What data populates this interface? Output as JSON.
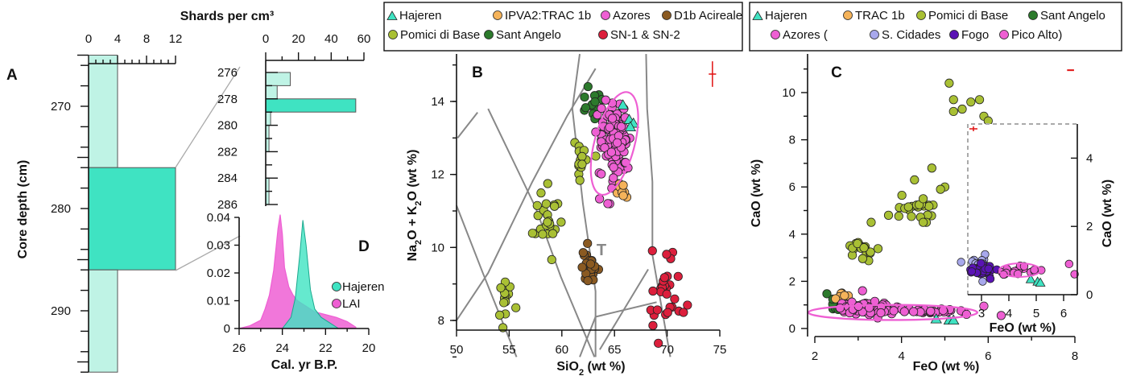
{
  "colors": {
    "Hajeren": "#3fe3c2",
    "IPVA2:TRAC 1b": "#f5b35a",
    "TRAC 1b": "#f5b35a",
    "Azores": "#ee5fd3",
    "D1b Acireale": "#8a5a22",
    "Pomici di Base": "#a9c034",
    "Sant Angelo": "#2c7a2c",
    "SN-1 & SN-2": "#dc1f3c",
    "S. Cidades": "#a8a8ec",
    "Fogo": "#5a13b4",
    "Pico Alto": "#ee5fd3",
    "error": "#e01010",
    "hist": "#bff3e5",
    "hist_hi": "#3fe3c2"
  },
  "panels": {
    "A": {
      "label": "A",
      "ylabel": "Core depth (cm)",
      "xlabel": "Shards per cm³"
    },
    "B": {
      "label": "B",
      "xlabel": "SiO₂ (wt %)",
      "ylabel": "Na₂O + K₂O (wt %)",
      "region_label": "T"
    },
    "C": {
      "label": "C",
      "xlabel": "FeO (wt %)",
      "ylabel": "CaO (wt %)",
      "inset_xlabel": "FeO (wt %)",
      "inset_ylabel": "CaO (wt %)"
    },
    "D": {
      "label": "D",
      "xlabel": "Cal. yr B.P."
    }
  },
  "legend_B": [
    {
      "name": "Hajeren",
      "shape": "triangle"
    },
    {
      "name": "IPVA2:TRAC 1b",
      "shape": "circle"
    },
    {
      "name": "Azores",
      "shape": "circle"
    },
    {
      "name": "D1b Acireale",
      "shape": "circle"
    },
    {
      "name": "Pomici di Base",
      "shape": "circle"
    },
    {
      "name": "Sant Angelo",
      "shape": "circle"
    },
    {
      "name": "SN-1 & SN-2",
      "shape": "circle"
    }
  ],
  "legend_C": [
    {
      "name": "Hajeren",
      "shape": "triangle",
      "text": "Hajeren"
    },
    {
      "name": "TRAC 1b",
      "shape": "circle",
      "text": "TRAC 1b"
    },
    {
      "name": "Pomici di Base",
      "shape": "circle",
      "text": "Pomici di Base"
    },
    {
      "name": "Sant Angelo",
      "shape": "circle",
      "text": "Sant Angelo"
    },
    {
      "name": "Azores",
      "shape": "circle",
      "text": "Azores ("
    },
    {
      "name": "S. Cidades",
      "shape": "circle",
      "text": "S. Cidades"
    },
    {
      "name": "Fogo",
      "shape": "circle",
      "text": "Fogo"
    },
    {
      "name": "Pico Alto",
      "shape": "circle",
      "text": "Pico Alto)"
    }
  ],
  "chart_data": [
    {
      "id": "A",
      "type": "bar",
      "orientation": "horizontal",
      "xlabel": "Shards per cm³",
      "ylabel": "Core depth (cm)",
      "xlim": [
        0,
        12
      ],
      "ylim": [
        296,
        265
      ],
      "xticks": [
        0,
        4,
        8,
        12
      ],
      "yticks": [
        270,
        280,
        290
      ],
      "bins": [
        {
          "from": 265,
          "to": 276,
          "value": 4
        },
        {
          "from": 276,
          "to": 286,
          "value": 12
        },
        {
          "from": 286,
          "to": 296,
          "value": 4
        }
      ]
    },
    {
      "id": "A-detail",
      "type": "bar",
      "orientation": "horizontal",
      "xlabel": "Shards per cm³",
      "ylabel": "",
      "xlim": [
        0,
        60
      ],
      "ylim": [
        286,
        275.7
      ],
      "xticks": [
        0,
        20,
        40,
        60
      ],
      "yticks": [
        276,
        278,
        280,
        282,
        284,
        286
      ],
      "bins": [
        {
          "from": 276,
          "to": 277,
          "value": 15
        },
        {
          "from": 277,
          "to": 278,
          "value": 7
        },
        {
          "from": 278,
          "to": 279,
          "value": 55
        },
        {
          "from": 279,
          "to": 280,
          "value": 3
        },
        {
          "from": 280,
          "to": 281,
          "value": 2
        },
        {
          "from": 281,
          "to": 282,
          "value": 2
        },
        {
          "from": 284,
          "to": 285,
          "value": 2
        },
        {
          "from": 285,
          "to": 286,
          "value": 2
        }
      ]
    },
    {
      "id": "D",
      "type": "area",
      "xlabel": "Cal. yr B.P.",
      "xlim": [
        26,
        20
      ],
      "ylim": [
        0,
        0.04
      ],
      "xticks": [
        26,
        24,
        22,
        20
      ],
      "yticks": [
        0,
        0.01,
        0.02,
        0.03,
        0.04
      ],
      "series": [
        {
          "name": "LAI",
          "x": [
            26,
            25.5,
            25,
            24.8,
            24.6,
            24.4,
            24.2,
            24.1,
            24.0,
            23.9,
            23.7,
            23.5,
            23.3,
            23.1,
            22.9,
            22.7,
            22.5,
            22.0,
            21.5,
            21.0,
            20.6
          ],
          "y": [
            0,
            0.001,
            0.003,
            0.007,
            0.012,
            0.021,
            0.036,
            0.041,
            0.034,
            0.022,
            0.015,
            0.012,
            0.01,
            0.009,
            0.008,
            0.007,
            0.006,
            0.005,
            0.004,
            0.0025,
            0.0005
          ]
        },
        {
          "name": "Hajeren",
          "x": [
            24.0,
            23.6,
            23.4,
            23.2,
            23.05,
            22.9,
            22.7,
            22.5,
            22.2,
            21.8,
            21.4
          ],
          "y": [
            0,
            0.004,
            0.011,
            0.026,
            0.039,
            0.03,
            0.014,
            0.007,
            0.004,
            0.002,
            0
          ]
        }
      ]
    },
    {
      "id": "B",
      "type": "scatter",
      "xlabel": "SiO₂ (wt %)",
      "ylabel": "Na₂O + K₂O (wt %)",
      "xlim": [
        50,
        75
      ],
      "ylim": [
        7,
        15
      ],
      "xticks": [
        50,
        55,
        60,
        65,
        70,
        75
      ],
      "yticks": [
        8,
        10,
        12,
        14
      ],
      "error_bar": {
        "x": 74.3,
        "y": 14.75,
        "dx": 0.35,
        "dy": 0.35
      },
      "ellipse": {
        "series": "Azores",
        "cx": 65,
        "cy": 12.85,
        "rx": 1.9,
        "ry": 1.45,
        "angle_deg": 15
      },
      "series": [
        {
          "name": "Pomici di Base",
          "clusters": [
            {
              "x": 54.5,
              "y": 8.6,
              "sx": 0.4,
              "sy": 0.4,
              "n": 14
            },
            {
              "x": 58.8,
              "y": 10.8,
              "sx": 0.6,
              "sy": 0.45,
              "n": 26
            },
            {
              "x": 61.8,
              "y": 12.4,
              "sx": 0.6,
              "sy": 0.3,
              "n": 16
            }
          ]
        },
        {
          "name": "Sant Angelo",
          "clusters": [
            {
              "x": 62.8,
              "y": 13.9,
              "sx": 0.4,
              "sy": 0.3,
              "n": 12
            }
          ]
        },
        {
          "name": "D1b Acireale",
          "clusters": [
            {
              "x": 62.6,
              "y": 9.55,
              "sx": 0.45,
              "sy": 0.25,
              "n": 26
            }
          ]
        },
        {
          "name": "SN-1 & SN-2",
          "clusters": [
            {
              "x": 70.0,
              "y": 8.9,
              "sx": 0.7,
              "sy": 0.55,
              "n": 32
            }
          ]
        },
        {
          "name": "Azores",
          "clusters": [
            {
              "x": 65.0,
              "y": 12.9,
              "sx": 0.75,
              "sy": 0.55,
              "n": 120
            }
          ]
        },
        {
          "name": "IPVA2:TRAC 1b",
          "clusters": [
            {
              "x": 65.6,
              "y": 11.6,
              "sx": 0.3,
              "sy": 0.15,
              "n": 8
            }
          ]
        },
        {
          "name": "Hajeren",
          "points": [
            [
              65.8,
              13.9
            ],
            [
              66.4,
              13.5
            ],
            [
              66.8,
              13.4
            ],
            [
              66.5,
              13.3
            ]
          ]
        }
      ]
    },
    {
      "id": "C",
      "type": "scatter",
      "xlabel": "FeO (wt %)",
      "ylabel": "CaO (wt %)",
      "xlim": [
        2,
        8
      ],
      "ylim": [
        0,
        11
      ],
      "xticks": [
        2,
        4,
        6,
        8
      ],
      "yticks": [
        0,
        2,
        4,
        6,
        8,
        10
      ],
      "error_bar": {
        "x": 7.9,
        "y": 10.95,
        "dx": 0.08,
        "dy": 0.02
      },
      "ellipse": {
        "series": "Azores",
        "cx": 3.8,
        "cy": 0.68,
        "rx": 1.95,
        "ry": 0.32,
        "angle_deg": 0
      },
      "series": [
        {
          "name": "Pomici di Base",
          "clusters": [
            {
              "x": 3.05,
              "y": 3.3,
              "sx": 0.15,
              "sy": 0.2,
              "n": 20
            },
            {
              "x": 4.3,
              "y": 5.0,
              "sx": 0.25,
              "sy": 0.3,
              "n": 22
            }
          ],
          "points": [
            [
              5.1,
              10.4
            ],
            [
              5.2,
              9.7
            ],
            [
              5.4,
              9.3
            ],
            [
              5.6,
              9.6
            ],
            [
              5.8,
              9.7
            ],
            [
              5.2,
              9.2
            ],
            [
              5.9,
              9.0
            ],
            [
              6.0,
              8.8
            ],
            [
              4.3,
              6.3
            ],
            [
              4.7,
              6.8
            ],
            [
              5.0,
              6.0
            ],
            [
              3.7,
              4.8
            ],
            [
              3.3,
              4.5
            ],
            [
              4.5,
              4.5
            ],
            [
              4.9,
              5.9
            ],
            [
              4.5,
              5.5
            ]
          ]
        },
        {
          "name": "Sant Angelo",
          "clusters": [
            {
              "x": 2.45,
              "y": 1.05,
              "sx": 0.15,
              "sy": 0.18,
              "n": 14
            }
          ]
        },
        {
          "name": "TRAC 1b",
          "clusters": [
            {
              "x": 2.6,
              "y": 1.35,
              "sx": 0.08,
              "sy": 0.1,
              "n": 7
            }
          ]
        },
        {
          "name": "Azores",
          "clusters": [
            {
              "x": 3.2,
              "y": 0.85,
              "sx": 0.35,
              "sy": 0.12,
              "n": 80
            },
            {
              "x": 4.6,
              "y": 0.75,
              "sx": 0.35,
              "sy": 0.05,
              "n": 30
            }
          ],
          "points": [
            [
              5.9,
              0.95
            ],
            [
              6.3,
              0.55
            ],
            [
              5.5,
              0.6
            ],
            [
              3.1,
              1.6
            ]
          ]
        },
        {
          "name": "Hajeren",
          "points": [
            [
              4.8,
              0.4
            ],
            [
              5.1,
              0.35
            ],
            [
              5.2,
              0.35
            ]
          ]
        }
      ],
      "inset": {
        "xlabel": "FeO (wt %)",
        "ylabel": "CaO (wt %)",
        "xlim": [
          2.5,
          6.5
        ],
        "ylim": [
          0,
          5
        ],
        "xticks": [
          3,
          4,
          5,
          6
        ],
        "yticks": [
          0,
          2,
          4
        ],
        "ellipse": {
          "cx": 4.4,
          "cy": 0.72,
          "rx": 0.75,
          "ry": 0.2
        },
        "series": [
          {
            "name": "S. Cidades",
            "clusters": [
              {
                "x": 2.95,
                "y": 0.85,
                "sx": 0.2,
                "sy": 0.15,
                "n": 22
              }
            ]
          },
          {
            "name": "Fogo",
            "clusters": [
              {
                "x": 3.0,
                "y": 0.72,
                "sx": 0.22,
                "sy": 0.08,
                "n": 34
              }
            ]
          },
          {
            "name": "Pico Alto",
            "clusters": [
              {
                "x": 4.5,
                "y": 0.7,
                "sx": 0.45,
                "sy": 0.07,
                "n": 24
              }
            ],
            "points": [
              [
                6.2,
                0.9
              ],
              [
                6.4,
                0.6
              ]
            ]
          },
          {
            "name": "Hajeren",
            "points": [
              [
                4.8,
                0.45
              ],
              [
                5.05,
                0.38
              ],
              [
                5.15,
                0.35
              ]
            ]
          }
        ]
      }
    }
  ]
}
